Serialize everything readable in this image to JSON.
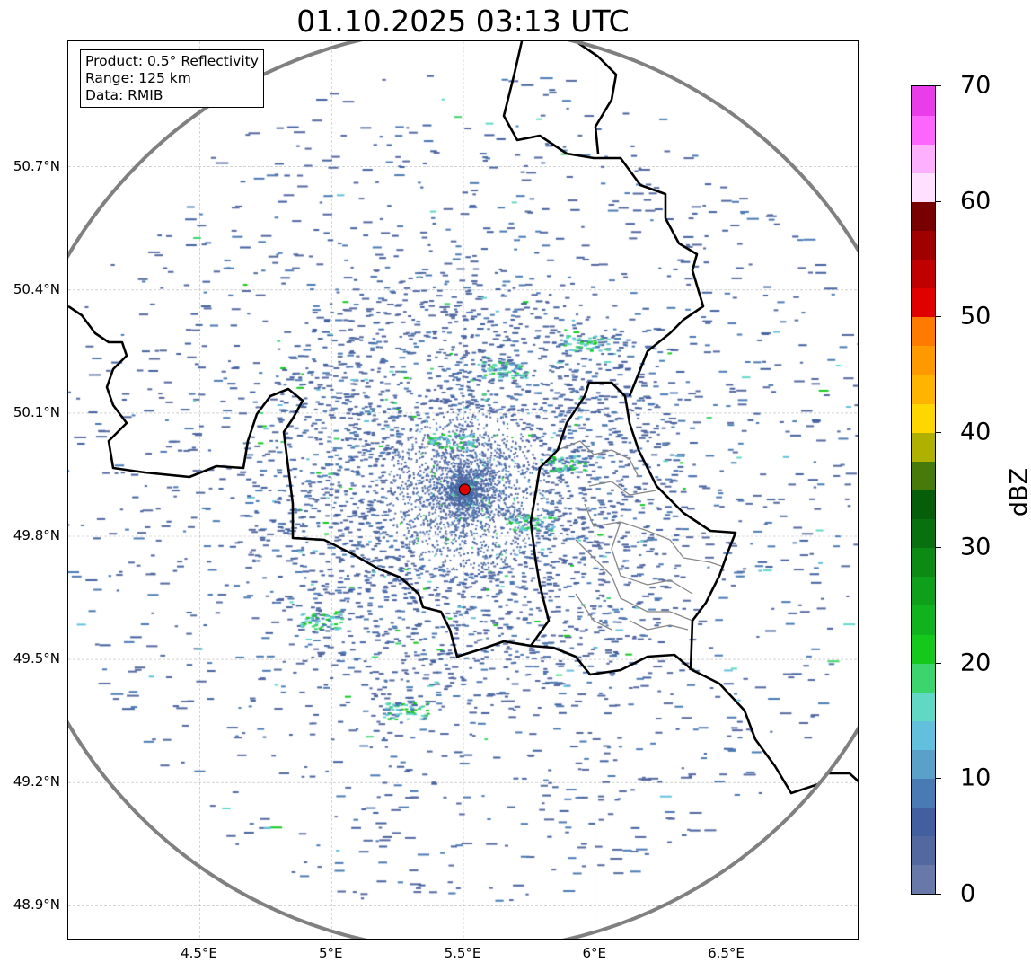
{
  "title": "01.10.2025 03:13 UTC",
  "info_box": {
    "product": "Product: 0.5° Reflectivity",
    "range": "Range: 125 km",
    "data": "Data: RMIB"
  },
  "map": {
    "lon_range": [
      4.0,
      7.0
    ],
    "lat_range": [
      48.8,
      50.99
    ],
    "radar_site": {
      "lon": 5.505,
      "lat": 49.914,
      "color": "#e00000"
    },
    "range_ring_km": 125,
    "x_ticks": [
      {
        "value": 4.5,
        "label": "4.5°E"
      },
      {
        "value": 5.0,
        "label": "5°E"
      },
      {
        "value": 5.5,
        "label": "5.5°E"
      },
      {
        "value": 6.0,
        "label": "6°E"
      },
      {
        "value": 6.5,
        "label": "6.5°E"
      }
    ],
    "y_ticks": [
      {
        "value": 50.7,
        "label": "50.7°N"
      },
      {
        "value": 50.4,
        "label": "50.4°N"
      },
      {
        "value": 50.1,
        "label": "50.1°N"
      },
      {
        "value": 49.8,
        "label": "49.8°N"
      },
      {
        "value": 49.5,
        "label": "49.5°N"
      },
      {
        "value": 49.2,
        "label": "49.2°N"
      },
      {
        "value": 48.9,
        "label": "48.9°N"
      }
    ]
  },
  "colorbar": {
    "label": "dBZ",
    "min": 0,
    "max": 70,
    "ticks": [
      {
        "value": 0,
        "label": "0"
      },
      {
        "value": 10,
        "label": "10"
      },
      {
        "value": 20,
        "label": "20"
      },
      {
        "value": 30,
        "label": "30"
      },
      {
        "value": 40,
        "label": "40"
      },
      {
        "value": 50,
        "label": "50"
      },
      {
        "value": 60,
        "label": "60"
      },
      {
        "value": 70,
        "label": "70"
      }
    ],
    "colors": [
      "#6878a8",
      "#5468a0",
      "#4260a0",
      "#4a7ab4",
      "#5aa0c8",
      "#63c0dc",
      "#60d8c4",
      "#3cd46c",
      "#14c81c",
      "#10b21e",
      "#0ea01a",
      "#0d8a14",
      "#097010",
      "#065e0a",
      "#467a0a",
      "#b0b000",
      "#ffd700",
      "#ffb400",
      "#ff9900",
      "#ff7a00",
      "#e00000",
      "#c00000",
      "#a00000",
      "#780000",
      "#ffe0ff",
      "#fdb0fd",
      "#fd66fd",
      "#e93de9"
    ]
  }
}
